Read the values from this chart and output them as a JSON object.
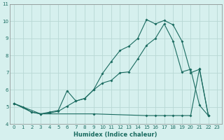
{
  "xlabel": "Humidex (Indice chaleur)",
  "bg_color": "#d6f0ee",
  "grid_color": "#b8d8d4",
  "line_color": "#1a6b60",
  "xlim": [
    -0.5,
    23.5
  ],
  "ylim": [
    4,
    11
  ],
  "xticks": [
    0,
    1,
    2,
    3,
    4,
    5,
    6,
    7,
    8,
    9,
    10,
    11,
    12,
    13,
    14,
    15,
    16,
    17,
    18,
    19,
    20,
    21,
    22,
    23
  ],
  "yticks": [
    4,
    5,
    6,
    7,
    8,
    9,
    10,
    11
  ],
  "line1_x": [
    0,
    1,
    2,
    3,
    4,
    5,
    6,
    7,
    8,
    9,
    10,
    11,
    12,
    13,
    14,
    15,
    16,
    17,
    18,
    19,
    20,
    21,
    22
  ],
  "line1_y": [
    5.2,
    5.0,
    4.7,
    4.6,
    4.7,
    4.8,
    5.95,
    5.35,
    5.5,
    6.0,
    6.4,
    6.55,
    7.0,
    7.05,
    7.8,
    8.6,
    9.0,
    9.85,
    8.85,
    7.05,
    7.2,
    5.1,
    4.5
  ],
  "line2_x": [
    0,
    2,
    3,
    4,
    5,
    6,
    7,
    8,
    9,
    10,
    11,
    12,
    13,
    14,
    15,
    16,
    17,
    18,
    19,
    20,
    21,
    22
  ],
  "line2_y": [
    5.2,
    4.7,
    4.6,
    4.65,
    4.75,
    5.05,
    5.35,
    5.5,
    6.0,
    6.95,
    7.65,
    8.3,
    8.55,
    9.0,
    10.1,
    9.85,
    10.05,
    9.8,
    8.85,
    7.0,
    7.2,
    4.5
  ],
  "line3_x": [
    0,
    3,
    9,
    15,
    16,
    17,
    18,
    19,
    20,
    21,
    22
  ],
  "line3_y": [
    5.2,
    4.6,
    4.6,
    4.5,
    4.5,
    4.5,
    4.5,
    4.5,
    4.5,
    7.25,
    4.5
  ]
}
